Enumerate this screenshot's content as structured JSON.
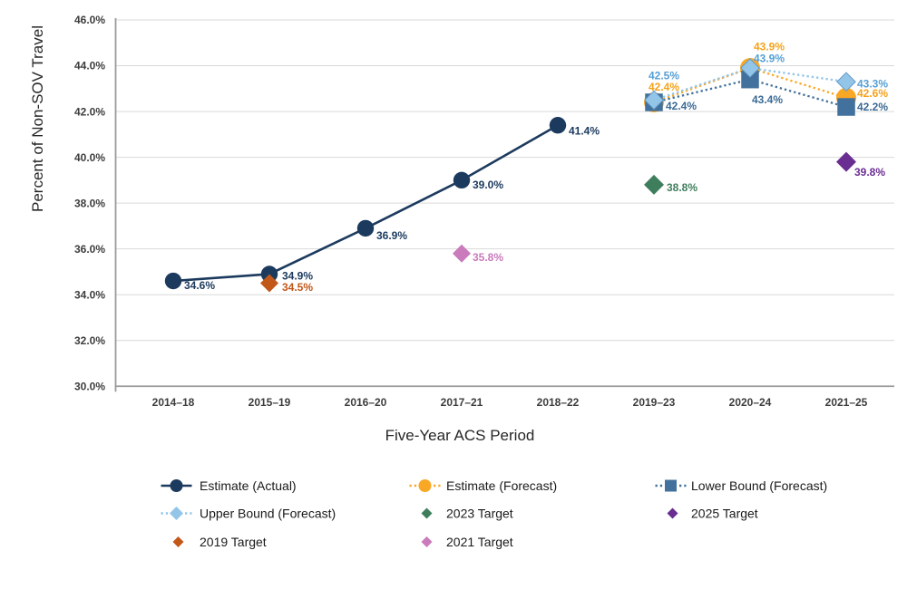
{
  "chart_data": {
    "type": "line",
    "title": "",
    "xlabel": "Five-Year ACS Period",
    "ylabel": "Percent of Non-SOV Travel",
    "ylim": [
      30,
      46
    ],
    "ytick_step": 2,
    "grid": "horizontal",
    "categories": [
      "2014–18",
      "2015–19",
      "2016–20",
      "2017–21",
      "2018–22",
      "2019–23",
      "2020–24",
      "2021–25"
    ],
    "series": [
      {
        "name": "Estimate (Actual)",
        "color": "#1C3A5E",
        "marker": "circle",
        "marker_size": 9.2,
        "line": "solid",
        "points": [
          {
            "category": "2014–18",
            "value": 34.6,
            "label": "34.6%",
            "label_dx": 12,
            "label_dy": 5
          },
          {
            "category": "2015–19",
            "value": 34.9,
            "label": "34.9%",
            "label_dx": 14,
            "label_dy": 2
          },
          {
            "category": "2016–20",
            "value": 36.9,
            "label": "36.9%",
            "label_dx": 12,
            "label_dy": 8
          },
          {
            "category": "2017–21",
            "value": 39.0,
            "label": "39.0%",
            "label_dx": 12,
            "label_dy": 5
          },
          {
            "category": "2018–22",
            "value": 41.4,
            "label": "41.4%",
            "label_dx": 12,
            "label_dy": 6
          }
        ]
      },
      {
        "name": "Estimate (Forecast)",
        "color": "#F9A826",
        "label_color": "#F5A21B",
        "marker": "circle",
        "marker_size": 11,
        "line": "dotted",
        "points": [
          {
            "category": "2019–23",
            "value": 42.4,
            "label": "42.4%",
            "label_dx": -6,
            "label_dy": -17
          },
          {
            "category": "2020–24",
            "value": 43.9,
            "label": "43.9%",
            "label_dx": 4,
            "label_dy": -24
          },
          {
            "category": "2021–25",
            "value": 42.6,
            "label": "42.6%",
            "label_dx": 12,
            "label_dy": -5
          }
        ]
      },
      {
        "name": "Lower Bound (Forecast)",
        "color": "#41719C",
        "label_color": "#3A6A95",
        "marker": "square",
        "marker_size": 19.5,
        "line": "dotted",
        "points": [
          {
            "category": "2019–23",
            "value": 42.4,
            "label": "42.4%",
            "label_dx": 13,
            "label_dy": 4
          },
          {
            "category": "2020–24",
            "value": 43.4,
            "label": "43.4%",
            "label_dx": 2,
            "label_dy": 22
          },
          {
            "category": "2021–25",
            "value": 42.2,
            "label": "42.2%",
            "label_dx": 12,
            "label_dy": 0
          }
        ]
      },
      {
        "name": "Upper Bound (Forecast)",
        "color": "#92C5E8",
        "label_color": "#56A0D5",
        "marker": "diamond",
        "marker_size": 10.2,
        "marker_stroke": "#5E96C4",
        "line": "dotted",
        "points": [
          {
            "category": "2019–23",
            "value": 42.5,
            "label": "42.5%",
            "label_dx": -6,
            "label_dy": -27
          },
          {
            "category": "2020–24",
            "value": 43.9,
            "label": "43.9%",
            "label_dx": 4,
            "label_dy": -11
          },
          {
            "category": "2021–25",
            "value": 43.3,
            "label": "43.3%",
            "label_dx": 12,
            "label_dy": 2
          }
        ]
      },
      {
        "name": "2023 Target",
        "color": "#3F7E5C",
        "marker": "diamond",
        "marker_size": 11,
        "line": "none",
        "points": [
          {
            "category": "2019–23",
            "value": 38.8,
            "label": "38.8%",
            "label_dx": 14,
            "label_dy": 3
          }
        ]
      },
      {
        "name": "2025 Target",
        "color": "#6A2D91",
        "marker": "diamond",
        "marker_size": 11,
        "line": "none",
        "points": [
          {
            "category": "2021–25",
            "value": 39.8,
            "label": "39.8%",
            "label_dx": 9,
            "label_dy": 11
          }
        ]
      },
      {
        "name": "2019 Target",
        "color": "#C2571A",
        "marker": "diamond",
        "marker_size": 10,
        "line": "none",
        "points": [
          {
            "category": "2015–19",
            "value": 34.5,
            "label": "34.5%",
            "label_dx": 14,
            "label_dy": 4
          }
        ]
      },
      {
        "name": "2021 Target",
        "color": "#C97BBB",
        "marker": "diamond",
        "marker_size": 10,
        "line": "none",
        "points": [
          {
            "category": "2017–21",
            "value": 35.8,
            "label": "35.8%",
            "label_dx": 12,
            "label_dy": 4
          }
        ]
      }
    ],
    "legend_rows": [
      [
        {
          "label": "Estimate (Actual)",
          "marker": "circle",
          "line": "solid",
          "color": "#1C3A5E"
        },
        {
          "label": "Estimate (Forecast)",
          "marker": "circle",
          "line": "dotted",
          "color": "#F9A826"
        },
        {
          "label": "Lower Bound (Forecast)",
          "marker": "square",
          "line": "dotted",
          "color": "#41719C"
        }
      ],
      [
        {
          "label": "Upper Bound (Forecast)",
          "marker": "diamond",
          "line": "dotted",
          "color": "#92C5E8"
        },
        {
          "label": "2023 Target",
          "marker": "diamond",
          "line": "none",
          "color": "#3F7E5C"
        },
        {
          "label": "2025 Target",
          "marker": "diamond",
          "line": "none",
          "color": "#6A2D91"
        }
      ],
      [
        {
          "label": "2019 Target",
          "marker": "diamond",
          "line": "none",
          "color": "#C2571A"
        },
        {
          "label": "2021 Target",
          "marker": "diamond",
          "line": "none",
          "color": "#C97BBB"
        }
      ]
    ]
  },
  "style": {
    "grid_color": "#D9D9D9",
    "axis_color": "#9B9B9B",
    "background": "#FFFFFF"
  }
}
